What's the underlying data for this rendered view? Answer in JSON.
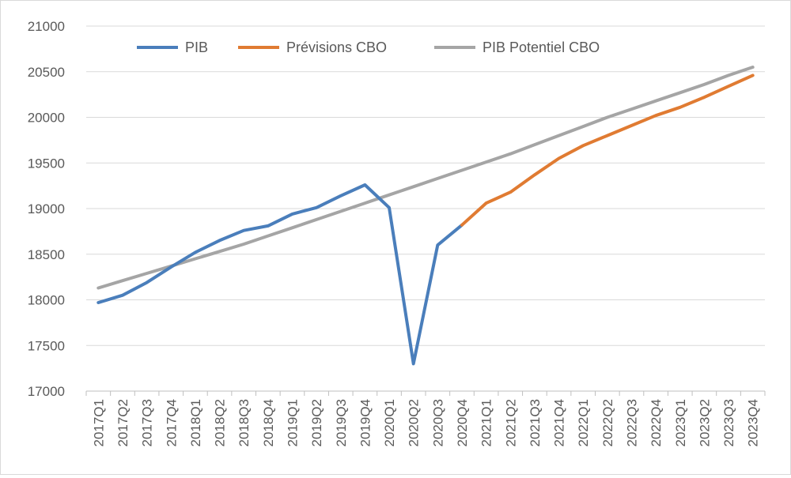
{
  "chart_data": {
    "type": "line",
    "title": "",
    "xlabel": "",
    "ylabel": "",
    "ylim": [
      17000,
      21000
    ],
    "yticks": [
      17000,
      17500,
      18000,
      18500,
      19000,
      19500,
      20000,
      20500,
      21000
    ],
    "grid": true,
    "legend_position": "top",
    "categories": [
      "2017Q1",
      "2017Q2",
      "2017Q3",
      "2017Q4",
      "2018Q1",
      "2018Q2",
      "2018Q3",
      "2018Q4",
      "2019Q1",
      "2019Q2",
      "2019Q3",
      "2019Q4",
      "2020Q1",
      "2020Q2",
      "2020Q3",
      "2020Q4",
      "2021Q1",
      "2021Q2",
      "2021Q3",
      "2021Q4",
      "2022Q1",
      "2022Q2",
      "2022Q3",
      "2022Q4",
      "2023Q1",
      "2023Q2",
      "2023Q3",
      "2023Q4"
    ],
    "series": [
      {
        "name": "PIB",
        "color": "#4a7ebb",
        "values": [
          17970,
          18050,
          18190,
          18360,
          18520,
          18650,
          18760,
          18810,
          18940,
          19010,
          19140,
          19260,
          19010,
          17300,
          18600,
          18820,
          null,
          null,
          null,
          null,
          null,
          null,
          null,
          null,
          null,
          null,
          null,
          null
        ]
      },
      {
        "name": "Prévisions CBO",
        "color": "#e07b32",
        "values": [
          null,
          null,
          null,
          null,
          null,
          null,
          null,
          null,
          null,
          null,
          null,
          null,
          null,
          null,
          null,
          18820,
          19060,
          19180,
          19370,
          19550,
          19690,
          19800,
          19910,
          20020,
          20110,
          20220,
          20340,
          20460
        ]
      },
      {
        "name": "PIB Potentiel CBO",
        "color": "#a5a5a5",
        "values": [
          18130,
          18210,
          18290,
          18370,
          18450,
          18530,
          18610,
          18700,
          18790,
          18880,
          18970,
          19060,
          19150,
          19240,
          19330,
          19420,
          19510,
          19600,
          19700,
          19800,
          19900,
          20000,
          20090,
          20180,
          20270,
          20360,
          20460,
          20550
        ]
      }
    ]
  }
}
